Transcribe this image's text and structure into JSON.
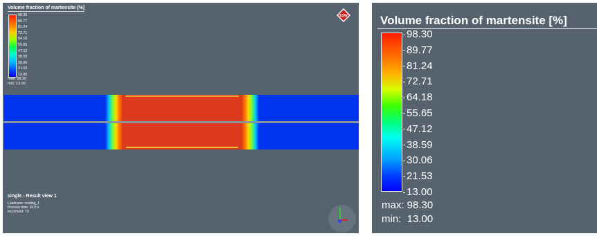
{
  "legend": {
    "title": "Volume fraction of martensite [%]",
    "ticks": [
      "98.30",
      "89.77",
      "81.24",
      "72.71",
      "64.18",
      "55.65",
      "47.12",
      "38.59",
      "30.06",
      "21.53",
      "13.00"
    ],
    "max_label": "max: 98.30",
    "min_label": "min:  13.00"
  },
  "viewport": {
    "logo_text": "ESW",
    "view_title": "single - Result view 1",
    "info_lines": [
      "Loadcase: cooling_1",
      "Process time: 30.0 s",
      "Increment: 73"
    ]
  },
  "colors": {
    "background": "#56636f",
    "cold_blue": "#0033ee",
    "hot_red": "#dd3a20",
    "gap": "#8a949c"
  },
  "icons": {
    "logo": "diamond-logo-icon",
    "orientation": "axis-triad-icon"
  }
}
